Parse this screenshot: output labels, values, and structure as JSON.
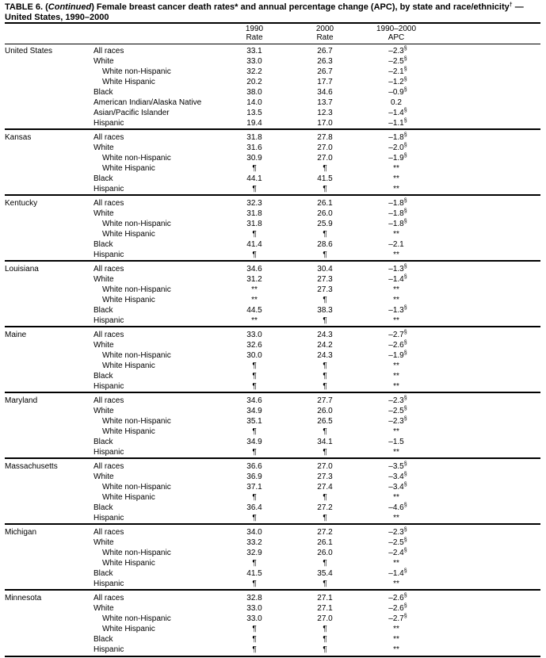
{
  "title": {
    "prefix": "TABLE 6. (",
    "italic": "Continued",
    "main": ") Female breast cancer death rates* and annual percentage change (APC), by state and race/ethnicity",
    "dagger": "†",
    "suffix": " — United States, 1990–2000"
  },
  "header": {
    "r1990": [
      "1990",
      "Rate"
    ],
    "r2000": [
      "2000",
      "Rate"
    ],
    "apc": [
      "1990–2000",
      "APC"
    ]
  },
  "groups": [
    {
      "state": "United States",
      "rows": [
        {
          "race": "All races",
          "r1990": "33.1",
          "r2000": "26.7",
          "apc": "–2.3",
          "sup": "§"
        },
        {
          "race": "White",
          "r1990": "33.0",
          "r2000": "26.3",
          "apc": "–2.5",
          "sup": "§"
        },
        {
          "race": "White non-Hispanic",
          "level": 1,
          "r1990": "32.2",
          "r2000": "26.7",
          "apc": "–2.1",
          "sup": "§"
        },
        {
          "race": "White Hispanic",
          "level": 1,
          "r1990": "20.2",
          "r2000": "17.7",
          "apc": "–1.2",
          "sup": "§"
        },
        {
          "race": "Black",
          "r1990": "38.0",
          "r2000": "34.6",
          "apc": "–0.9",
          "sup": "§"
        },
        {
          "race": "American Indian/Alaska Native",
          "r1990": "14.0",
          "r2000": "13.7",
          "apc": "0.2"
        },
        {
          "race": "Asian/Pacific Islander",
          "r1990": "13.5",
          "r2000": "12.3",
          "apc": "–1.4",
          "sup": "§"
        },
        {
          "race": "Hispanic",
          "r1990": "19.4",
          "r2000": "17.0",
          "apc": "–1.1",
          "sup": "§"
        }
      ]
    },
    {
      "state": "Kansas",
      "rows": [
        {
          "race": "All races",
          "r1990": "31.8",
          "r2000": "27.8",
          "apc": "–1.8",
          "sup": "§"
        },
        {
          "race": "White",
          "r1990": "31.6",
          "r2000": "27.0",
          "apc": "–2.0",
          "sup": "§"
        },
        {
          "race": "White non-Hispanic",
          "level": 1,
          "r1990": "30.9",
          "r2000": "27.0",
          "apc": "–1.9",
          "sup": "§"
        },
        {
          "race": "White Hispanic",
          "level": 1,
          "r1990": "¶",
          "r2000": "¶",
          "apc": "**"
        },
        {
          "race": "Black",
          "r1990": "44.1",
          "r2000": "41.5",
          "apc": "**"
        },
        {
          "race": "Hispanic",
          "r1990": "¶",
          "r2000": "¶",
          "apc": "**"
        }
      ]
    },
    {
      "state": "Kentucky",
      "rows": [
        {
          "race": "All races",
          "r1990": "32.3",
          "r2000": "26.1",
          "apc": "–1.8",
          "sup": "§"
        },
        {
          "race": "White",
          "r1990": "31.8",
          "r2000": "26.0",
          "apc": "–1.8",
          "sup": "§"
        },
        {
          "race": "White non-Hispanic",
          "level": 1,
          "r1990": "31.8",
          "r2000": "25.9",
          "apc": "–1.8",
          "sup": "§"
        },
        {
          "race": "White Hispanic",
          "level": 1,
          "r1990": "¶",
          "r2000": "¶",
          "apc": "**"
        },
        {
          "race": "Black",
          "r1990": "41.4",
          "r2000": "28.6",
          "apc": "–2.1"
        },
        {
          "race": "Hispanic",
          "r1990": "¶",
          "r2000": "¶",
          "apc": "**"
        }
      ]
    },
    {
      "state": "Louisiana",
      "rows": [
        {
          "race": "All races",
          "r1990": "34.6",
          "r2000": "30.4",
          "apc": "–1.3",
          "sup": "§"
        },
        {
          "race": "White",
          "r1990": "31.2",
          "r2000": "27.3",
          "apc": "–1.4",
          "sup": "§"
        },
        {
          "race": "White non-Hispanic",
          "level": 1,
          "r1990": "**",
          "r2000": "27.3",
          "apc": "**"
        },
        {
          "race": "White Hispanic",
          "level": 1,
          "r1990": "**",
          "r2000": "¶",
          "apc": "**"
        },
        {
          "race": "Black",
          "r1990": "44.5",
          "r2000": "38.3",
          "apc": "–1.3",
          "sup": "§"
        },
        {
          "race": "Hispanic",
          "r1990": "**",
          "r2000": "¶",
          "apc": "**"
        }
      ]
    },
    {
      "state": "Maine",
      "rows": [
        {
          "race": "All races",
          "r1990": "33.0",
          "r2000": "24.3",
          "apc": "–2.7",
          "sup": "§"
        },
        {
          "race": "White",
          "r1990": "32.6",
          "r2000": "24.2",
          "apc": "–2.6",
          "sup": "§"
        },
        {
          "race": "White non-Hispanic",
          "level": 1,
          "r1990": "30.0",
          "r2000": "24.3",
          "apc": "–1.9",
          "sup": "§"
        },
        {
          "race": "White Hispanic",
          "level": 1,
          "r1990": "¶",
          "r2000": "¶",
          "apc": "**"
        },
        {
          "race": "Black",
          "r1990": "¶",
          "r2000": "¶",
          "apc": "**"
        },
        {
          "race": "Hispanic",
          "r1990": "¶",
          "r2000": "¶",
          "apc": "**"
        }
      ]
    },
    {
      "state": "Maryland",
      "rows": [
        {
          "race": "All races",
          "r1990": "34.6",
          "r2000": "27.7",
          "apc": "–2.3",
          "sup": "§"
        },
        {
          "race": "White",
          "r1990": "34.9",
          "r2000": "26.0",
          "apc": "–2.5",
          "sup": "§"
        },
        {
          "race": "White non-Hispanic",
          "level": 1,
          "r1990": "35.1",
          "r2000": "26.5",
          "apc": "–2.3",
          "sup": "§"
        },
        {
          "race": "White Hispanic",
          "level": 1,
          "r1990": "¶",
          "r2000": "¶",
          "apc": "**"
        },
        {
          "race": "Black",
          "r1990": "34.9",
          "r2000": "34.1",
          "apc": "–1.5"
        },
        {
          "race": "Hispanic",
          "r1990": "¶",
          "r2000": "¶",
          "apc": "**"
        }
      ]
    },
    {
      "state": "Massachusetts",
      "rows": [
        {
          "race": "All races",
          "r1990": "36.6",
          "r2000": "27.0",
          "apc": "–3.5",
          "sup": "§"
        },
        {
          "race": "White",
          "r1990": "36.9",
          "r2000": "27.3",
          "apc": "–3.4",
          "sup": "§"
        },
        {
          "race": "White non-Hispanic",
          "level": 1,
          "r1990": "37.1",
          "r2000": "27.4",
          "apc": "–3.4",
          "sup": "§"
        },
        {
          "race": "White Hispanic",
          "level": 1,
          "r1990": "¶",
          "r2000": "¶",
          "apc": "**"
        },
        {
          "race": "Black",
          "r1990": "36.4",
          "r2000": "27.2",
          "apc": "–4.6",
          "sup": "§"
        },
        {
          "race": "Hispanic",
          "r1990": "¶",
          "r2000": "¶",
          "apc": "**"
        }
      ]
    },
    {
      "state": "Michigan",
      "rows": [
        {
          "race": "All races",
          "r1990": "34.0",
          "r2000": "27.2",
          "apc": "–2.3",
          "sup": "§"
        },
        {
          "race": "White",
          "r1990": "33.2",
          "r2000": "26.1",
          "apc": "–2.5",
          "sup": "§"
        },
        {
          "race": "White non-Hispanic",
          "level": 1,
          "r1990": "32.9",
          "r2000": "26.0",
          "apc": "–2.4",
          "sup": "§"
        },
        {
          "race": "White Hispanic",
          "level": 1,
          "r1990": "¶",
          "r2000": "¶",
          "apc": "**"
        },
        {
          "race": "Black",
          "r1990": "41.5",
          "r2000": "35.4",
          "apc": "–1.4",
          "sup": "§"
        },
        {
          "race": "Hispanic",
          "r1990": "¶",
          "r2000": "¶",
          "apc": "**"
        }
      ]
    },
    {
      "state": "Minnesota",
      "rows": [
        {
          "race": "All races",
          "r1990": "32.8",
          "r2000": "27.1",
          "apc": "–2.6",
          "sup": "§"
        },
        {
          "race": "White",
          "r1990": "33.0",
          "r2000": "27.1",
          "apc": "–2.6",
          "sup": "§"
        },
        {
          "race": "White non-Hispanic",
          "level": 1,
          "r1990": "33.0",
          "r2000": "27.0",
          "apc": "–2.7",
          "sup": "§"
        },
        {
          "race": "White Hispanic",
          "level": 1,
          "r1990": "¶",
          "r2000": "¶",
          "apc": "**"
        },
        {
          "race": "Black",
          "r1990": "¶",
          "r2000": "¶",
          "apc": "**"
        },
        {
          "race": "Hispanic",
          "r1990": "¶",
          "r2000": "¶",
          "apc": "**"
        }
      ]
    }
  ]
}
